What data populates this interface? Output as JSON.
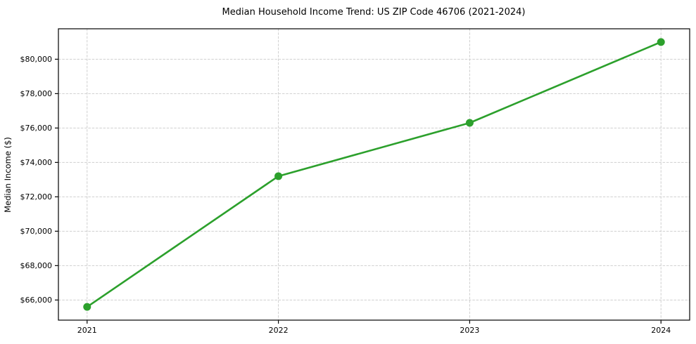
{
  "chart_data": {
    "type": "line",
    "title": "Median Household Income Trend: US ZIP Code 46706 (2021-2024)",
    "xlabel": "",
    "ylabel": "Median Income ($)",
    "x": [
      2021,
      2022,
      2023,
      2024
    ],
    "x_tick_labels": [
      "2021",
      "2022",
      "2023",
      "2024"
    ],
    "series": [
      {
        "values": [
          65600,
          73200,
          76300,
          81000
        ],
        "color": "#2ca02c",
        "marker": "circle"
      }
    ],
    "yticks": [
      66000,
      68000,
      70000,
      72000,
      74000,
      76000,
      78000,
      80000
    ],
    "ytick_labels": [
      "$66,000",
      "$68,000",
      "$70,000",
      "$72,000",
      "$74,000",
      "$76,000",
      "$78,000",
      "$80,000"
    ],
    "xlim": [
      2020.85,
      2024.15
    ],
    "ylim": [
      64830,
      81770
    ],
    "grid": {
      "visible": true,
      "style": "dashed",
      "color": "#cfcfcf"
    },
    "legend": "none",
    "spine_color": "#000000",
    "tick_color": "#000000",
    "background_color": "#ffffff"
  }
}
